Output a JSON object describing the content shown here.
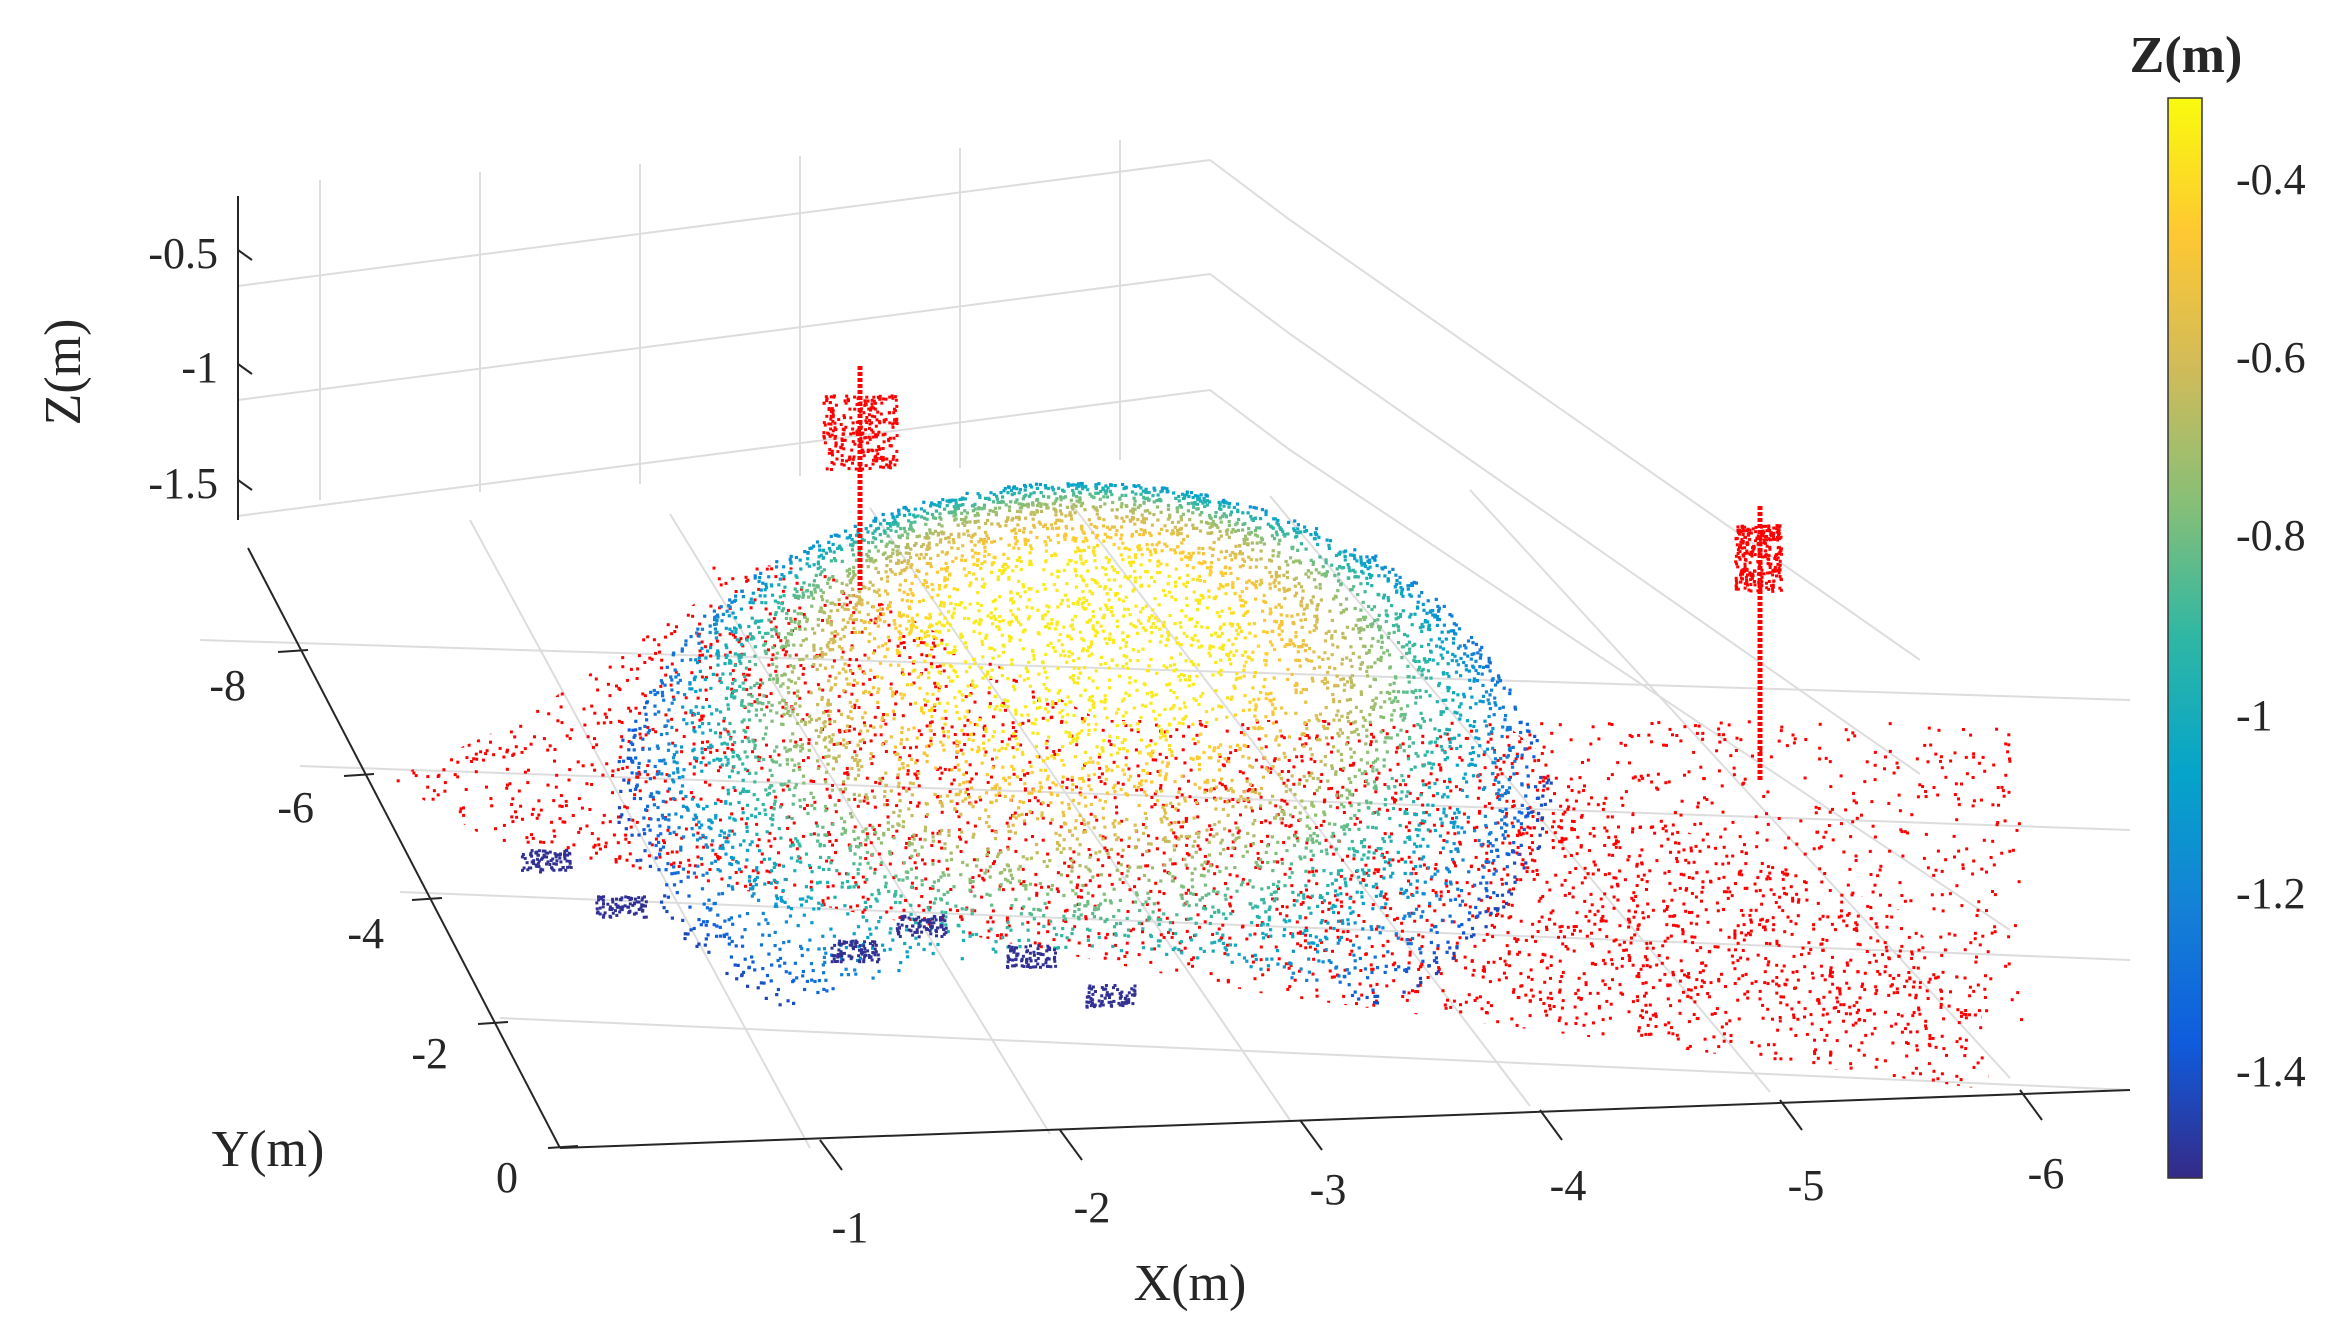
{
  "chart_data": {
    "type": "scatter",
    "xlabel": "X(m)",
    "ylabel": "Y(m)",
    "zlabel": "Z(m)",
    "xlim": [
      0,
      -6.5
    ],
    "ylim": [
      0,
      -9
    ],
    "zlim": [
      -1.8,
      -0.3
    ],
    "x_ticks": [
      "-1",
      "-2",
      "-3",
      "-4",
      "-5",
      "-6"
    ],
    "y_ticks": [
      "0",
      "-2",
      "-4",
      "-6",
      "-8"
    ],
    "z_ticks": [
      "-0.5",
      "-1",
      "-1.5"
    ],
    "colorbar": {
      "label": "Z(m)",
      "ticks": [
        "-0.4",
        "-0.6",
        "-0.8",
        "-1",
        "-1.2",
        "-1.4"
      ],
      "range": [
        -1.52,
        -0.3
      ],
      "colormap": "parula",
      "stops": [
        "#352a87",
        "#0f5cdd",
        "#1481d6",
        "#06a4ca",
        "#2eb7a4",
        "#87bf77",
        "#d1bb59",
        "#fec832",
        "#f9fb0e"
      ]
    },
    "ground_color": "#ff0000",
    "grid": true,
    "pile": {
      "x_range": [
        -0.8,
        -4.6
      ],
      "y_range": [
        -3.2,
        -8.5
      ],
      "peak_z": -0.35,
      "base_z": -1.45
    },
    "markers": [
      {
        "x": -0.75,
        "y": -8.2,
        "z_range": [
          -1.55,
          -0.85
        ]
      },
      {
        "x": -4.1,
        "y": -8.3,
        "z_range": [
          -1.55,
          -0.95
        ]
      }
    ]
  }
}
